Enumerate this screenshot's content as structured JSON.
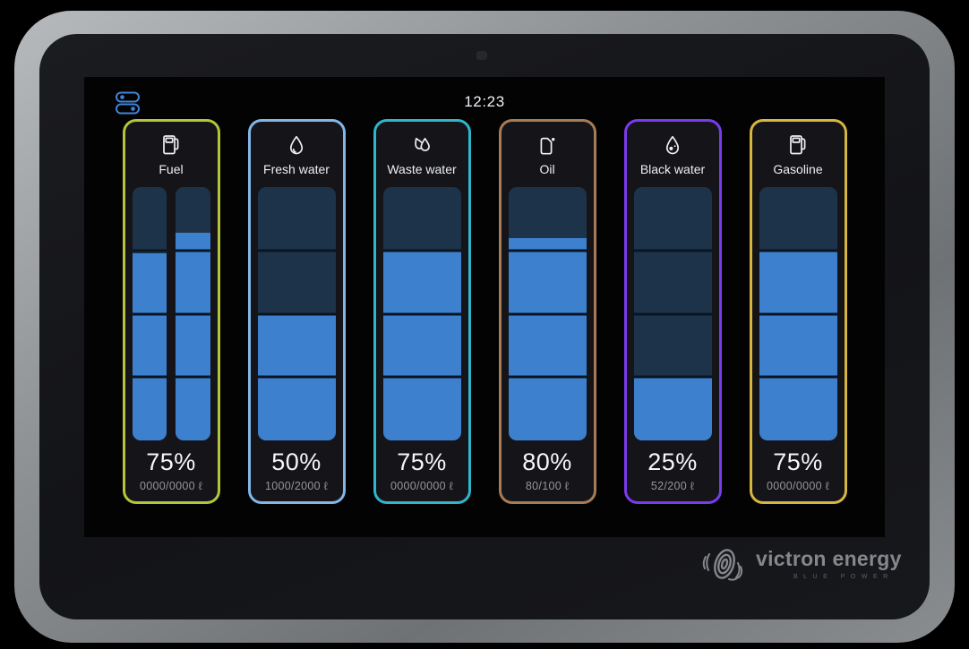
{
  "statusbar": {
    "time": "12:23",
    "menu_icon": "toggles-icon"
  },
  "colors": {
    "bar_fill": "#3D80CE",
    "bar_empty": "#1D3349",
    "bar_divider": "#0A1524",
    "menu_icon": "#3F86D8",
    "screen_bg": "#030304",
    "card_bg": "#151519",
    "logo_gray": "#84878C"
  },
  "tanks": [
    {
      "name": "Fuel",
      "icon": "fuel-pump-icon",
      "color": "#B4C53B",
      "percent": "75%",
      "capacity": "0000/0000 ℓ",
      "bars": [
        74,
        82
      ]
    },
    {
      "name": "Fresh water",
      "icon": "water-drop-icon",
      "color": "#82B6E8",
      "percent": "50%",
      "capacity": "1000/2000 ℓ",
      "bars": [
        50
      ]
    },
    {
      "name": "Waste water",
      "icon": "double-drop-icon",
      "color": "#2FB5CC",
      "percent": "75%",
      "capacity": "0000/0000 ℓ",
      "bars": [
        75
      ]
    },
    {
      "name": "Oil",
      "icon": "oil-can-icon",
      "color": "#A67C58",
      "percent": "80%",
      "capacity": "80/100 ℓ",
      "bars": [
        80
      ]
    },
    {
      "name": "Black water",
      "icon": "drop-dots-icon",
      "color": "#7A3BEE",
      "percent": "25%",
      "capacity": "52/200 ℓ",
      "bars": [
        25
      ]
    },
    {
      "name": "Gasoline",
      "icon": "fuel-pump-icon",
      "color": "#D7B63F",
      "percent": "75%",
      "capacity": "0000/0000 ℓ",
      "bars": [
        75
      ]
    }
  ],
  "branding": {
    "logo_text": "victron energy",
    "logo_subtext": "BLUE POWER"
  }
}
